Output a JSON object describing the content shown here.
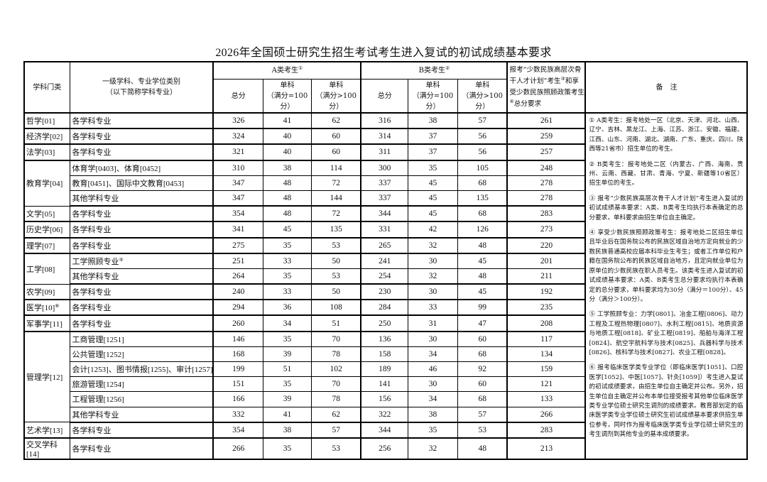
{
  "title": "2026年全国硕士研究生招生考试考生进入复试的初试成绩基本要求",
  "header": {
    "category": "学科门类",
    "major_line1": "一级学科、专业学位类别",
    "major_line2": "（以下简称学科专业）",
    "group_a": "A类考生",
    "group_a_note": "①",
    "group_b": "B类考生",
    "group_b_note": "②",
    "total": "总分",
    "single_100_line1": "单科",
    "single_100_line2": "（满分=100分）",
    "single_gt100_line1": "单科",
    "single_gt100_line2": "（满分>100分）",
    "minority_part1": "报考“少数民族高层次骨干人才计划”考生",
    "minority_note1": "③",
    "minority_part2": "和享受少数民族照顾政策考生",
    "minority_note2": "④",
    "minority_part3": "总分要求",
    "notes": "备　注"
  },
  "groups": [
    {
      "category": "哲学[01]",
      "rows": [
        {
          "major": "各学科专业",
          "a": [
            326,
            41,
            62
          ],
          "b": [
            316,
            38,
            57
          ],
          "m": 261
        }
      ]
    },
    {
      "category": "经济学[02]",
      "rows": [
        {
          "major": "各学科专业",
          "a": [
            324,
            40,
            60
          ],
          "b": [
            314,
            37,
            56
          ],
          "m": 259
        }
      ]
    },
    {
      "category": "法学[03]",
      "rows": [
        {
          "major": "各学科专业",
          "a": [
            321,
            40,
            60
          ],
          "b": [
            311,
            37,
            56
          ],
          "m": 257
        }
      ]
    },
    {
      "category": "教育学[04]",
      "rows": [
        {
          "major": "体育学[0403]、体育[0452]",
          "a": [
            310,
            38,
            114
          ],
          "b": [
            300,
            35,
            105
          ],
          "m": 248
        },
        {
          "major": "教育[0451]、国际中文教育[0453]",
          "a": [
            347,
            48,
            72
          ],
          "b": [
            337,
            45,
            68
          ],
          "m": 278
        },
        {
          "major": "其他学科专业",
          "a": [
            347,
            48,
            144
          ],
          "b": [
            337,
            45,
            135
          ],
          "m": 278
        }
      ]
    },
    {
      "category": "文学[05]",
      "rows": [
        {
          "major": "各学科专业",
          "a": [
            354,
            48,
            72
          ],
          "b": [
            344,
            45,
            68
          ],
          "m": 283
        }
      ]
    },
    {
      "category": "历史学[06]",
      "rows": [
        {
          "major": "各学科专业",
          "a": [
            341,
            45,
            135
          ],
          "b": [
            331,
            42,
            126
          ],
          "m": 273
        }
      ]
    },
    {
      "category": "理学[07]",
      "rows": [
        {
          "major": "各学科专业",
          "a": [
            275,
            35,
            53
          ],
          "b": [
            265,
            32,
            48
          ],
          "m": 220
        }
      ]
    },
    {
      "category": "工学[08]",
      "rows": [
        {
          "major": "工学照顾专业",
          "sup": "⑤",
          "a": [
            251,
            33,
            50
          ],
          "b": [
            241,
            30,
            45
          ],
          "m": 201
        },
        {
          "major": "其他学科专业",
          "a": [
            264,
            35,
            53
          ],
          "b": [
            254,
            32,
            48
          ],
          "m": 211
        }
      ]
    },
    {
      "category": "农学[09]",
      "rows": [
        {
          "major": "各学科专业",
          "a": [
            240,
            33,
            50
          ],
          "b": [
            230,
            30,
            45
          ],
          "m": 192
        }
      ]
    },
    {
      "category": "医学[10]",
      "category_sup": "⑥",
      "rows": [
        {
          "major": "各学科专业",
          "a": [
            294,
            36,
            108
          ],
          "b": [
            284,
            33,
            99
          ],
          "m": 235
        }
      ]
    },
    {
      "category": "军事学[11]",
      "rows": [
        {
          "major": "各学科专业",
          "a": [
            260,
            34,
            51
          ],
          "b": [
            250,
            31,
            47
          ],
          "m": 208
        }
      ]
    },
    {
      "category": "管理学[12]",
      "rows": [
        {
          "major": "工商管理[1251]",
          "a": [
            146,
            35,
            70
          ],
          "b": [
            136,
            30,
            60
          ],
          "m": 117
        },
        {
          "major": "公共管理[1252]",
          "a": [
            168,
            39,
            78
          ],
          "b": [
            158,
            34,
            68
          ],
          "m": 134
        },
        {
          "major": "会计[1253]、图书情报[1255]、审计[1257]",
          "a": [
            199,
            51,
            102
          ],
          "b": [
            189,
            46,
            92
          ],
          "m": 159
        },
        {
          "major": "旅游管理[1254]",
          "a": [
            151,
            35,
            70
          ],
          "b": [
            141,
            30,
            60
          ],
          "m": 121
        },
        {
          "major": "工程管理[1256]",
          "a": [
            166,
            39,
            78
          ],
          "b": [
            156,
            34,
            68
          ],
          "m": 133
        },
        {
          "major": "其他学科专业",
          "a": [
            332,
            41,
            62
          ],
          "b": [
            322,
            38,
            57
          ],
          "m": 266
        }
      ]
    },
    {
      "category": "艺术学[13]",
      "rows": [
        {
          "major": "各学科专业",
          "a": [
            354,
            38,
            57
          ],
          "b": [
            344,
            35,
            53
          ],
          "m": 283
        }
      ]
    },
    {
      "category": "交叉学科[14]",
      "rows": [
        {
          "major": "各学科专业",
          "a": [
            266,
            35,
            53
          ],
          "b": [
            256,
            32,
            48
          ],
          "m": 213
        }
      ]
    }
  ],
  "notes": [
    "① A类考生：报考地处一区（北京、天津、河北、山西、辽宁、吉林、黑龙江、上海、江苏、浙江、安徽、福建、江西、山东、河南、湖北、湖南、广东、重庆、四川、陕西等21省市）招生单位的考生。",
    "② B类考生：报考地处二区（内蒙古、广西、海南、贵州、云南、西藏、甘肃、青海、宁夏、新疆等10省区）招生单位的考生。",
    "③ 报考“少数民族高层次骨干人才计划”考生进入复试的初试成绩基本要求：A类、B类考生均执行本表确定的总分要求，单科要求由招生单位自主确定。",
    "④ 享受少数民族照顾政策考生：报考地处二区招生单位且毕业后在国务院公布的民族区域自治地方定向就业的少数民族普通高校应届本科毕业生考生；或者工作单位和户籍在国务院公布的民族区域自治地方，且定向就业单位为原单位的少数民族在职人员考生。该类考生进入复试的初试成绩基本要求：A类、B类考生总分要求均执行本表确定的总分要求，单科要求均为30分（满分＝100分）、45分（满分＞100分）。",
    "⑤ 工学照顾专业：力学[0801]、冶金工程[0806]、动力工程及工程热物理[0807]、水利工程[0815]、地质资源与地质工程[0818]、矿业工程[0819]、船舶与海洋工程[0824]、航空宇航科学与技术[0825]、兵器科学与技术[0826]、核科学与技术[0827]、农业工程[0828]。",
    "⑥ 报考临床医学类专业学位（即临床医学[1051]、口腔医学[1052]、中医[1057]、针灸[1059]）考生进入复试的初试成绩要求，由招生单位自主确定并公布。另外，招生单位自主确定并公布本单位接受报考其他单位临床医学类专业学位硕士研究生调剂的成绩要求。教育部划定的临床医学类专业学位硕士研究生初试成绩基本要求供招生单位参考，同时作为报考临床医学类专业学位硕士研究生的考生调剂到其他专业的基本成绩要求。"
  ]
}
